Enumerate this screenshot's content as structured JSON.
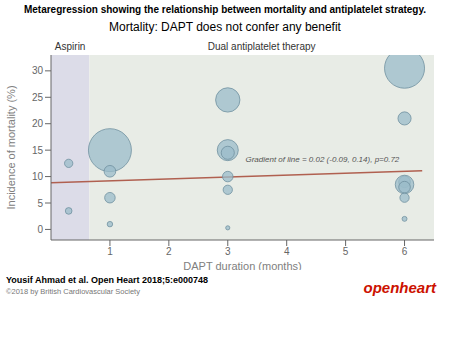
{
  "chart_data": {
    "type": "scatter",
    "title": "Metaregression showing the relationship between mortality and antiplatelet strategy.",
    "subtitle": "Mortality: DAPT does not confer any benefit",
    "xlabel": "DAPT duration (months)",
    "ylabel": "Incidence of mortality (%)",
    "annotations": [
      "Gradient of line = 0.02 (-0.09, 0.14), p=0.72"
    ],
    "citation": "Yousif Ahmad et al. Open Heart 2018;5:e000748",
    "copyright": "©2018 by British Cardiovascular Society",
    "logo": {
      "text": "openheart",
      "color": "#cc1100"
    },
    "x": [
      0.3,
      0.3,
      1.0,
      1.0,
      1.0,
      1.0,
      3.0,
      3.0,
      3.0,
      3.0,
      3.0,
      3.0,
      6.0,
      6.0,
      6.0,
      6.0,
      6.0,
      6.0,
      6.0
    ],
    "values": [
      12.5,
      3.5,
      15.0,
      11.0,
      6.0,
      1.0,
      24.5,
      15.0,
      14.5,
      10.0,
      7.5,
      0.3,
      30.5,
      21.0,
      9.0,
      8.5,
      8.0,
      6.0,
      2.0
    ],
    "sizes": [
      28,
      18,
      750,
      55,
      45,
      12,
      240,
      180,
      70,
      45,
      35,
      7,
      650,
      70,
      55,
      140,
      55,
      35,
      10
    ],
    "color": "#9bbcca",
    "regression_line": {
      "x": [
        0.0,
        6.3
      ],
      "values": [
        8.85,
        11.1
      ],
      "color": "#b06050"
    },
    "regions": [
      {
        "label": "Aspirin",
        "x": [
          0.0,
          0.65
        ],
        "color": "#dcdce8"
      },
      {
        "label": "Dual antiplatelet therapy",
        "x": [
          0.65,
          6.5
        ],
        "color": "#e8ece6"
      }
    ],
    "xlim": [
      0.0,
      6.5
    ],
    "ylim": [
      -2,
      33
    ],
    "xticks": [
      1,
      2,
      3,
      4,
      5,
      6
    ],
    "yticks": [
      0,
      5,
      10,
      15,
      20,
      25,
      30
    ],
    "grid": false
  }
}
